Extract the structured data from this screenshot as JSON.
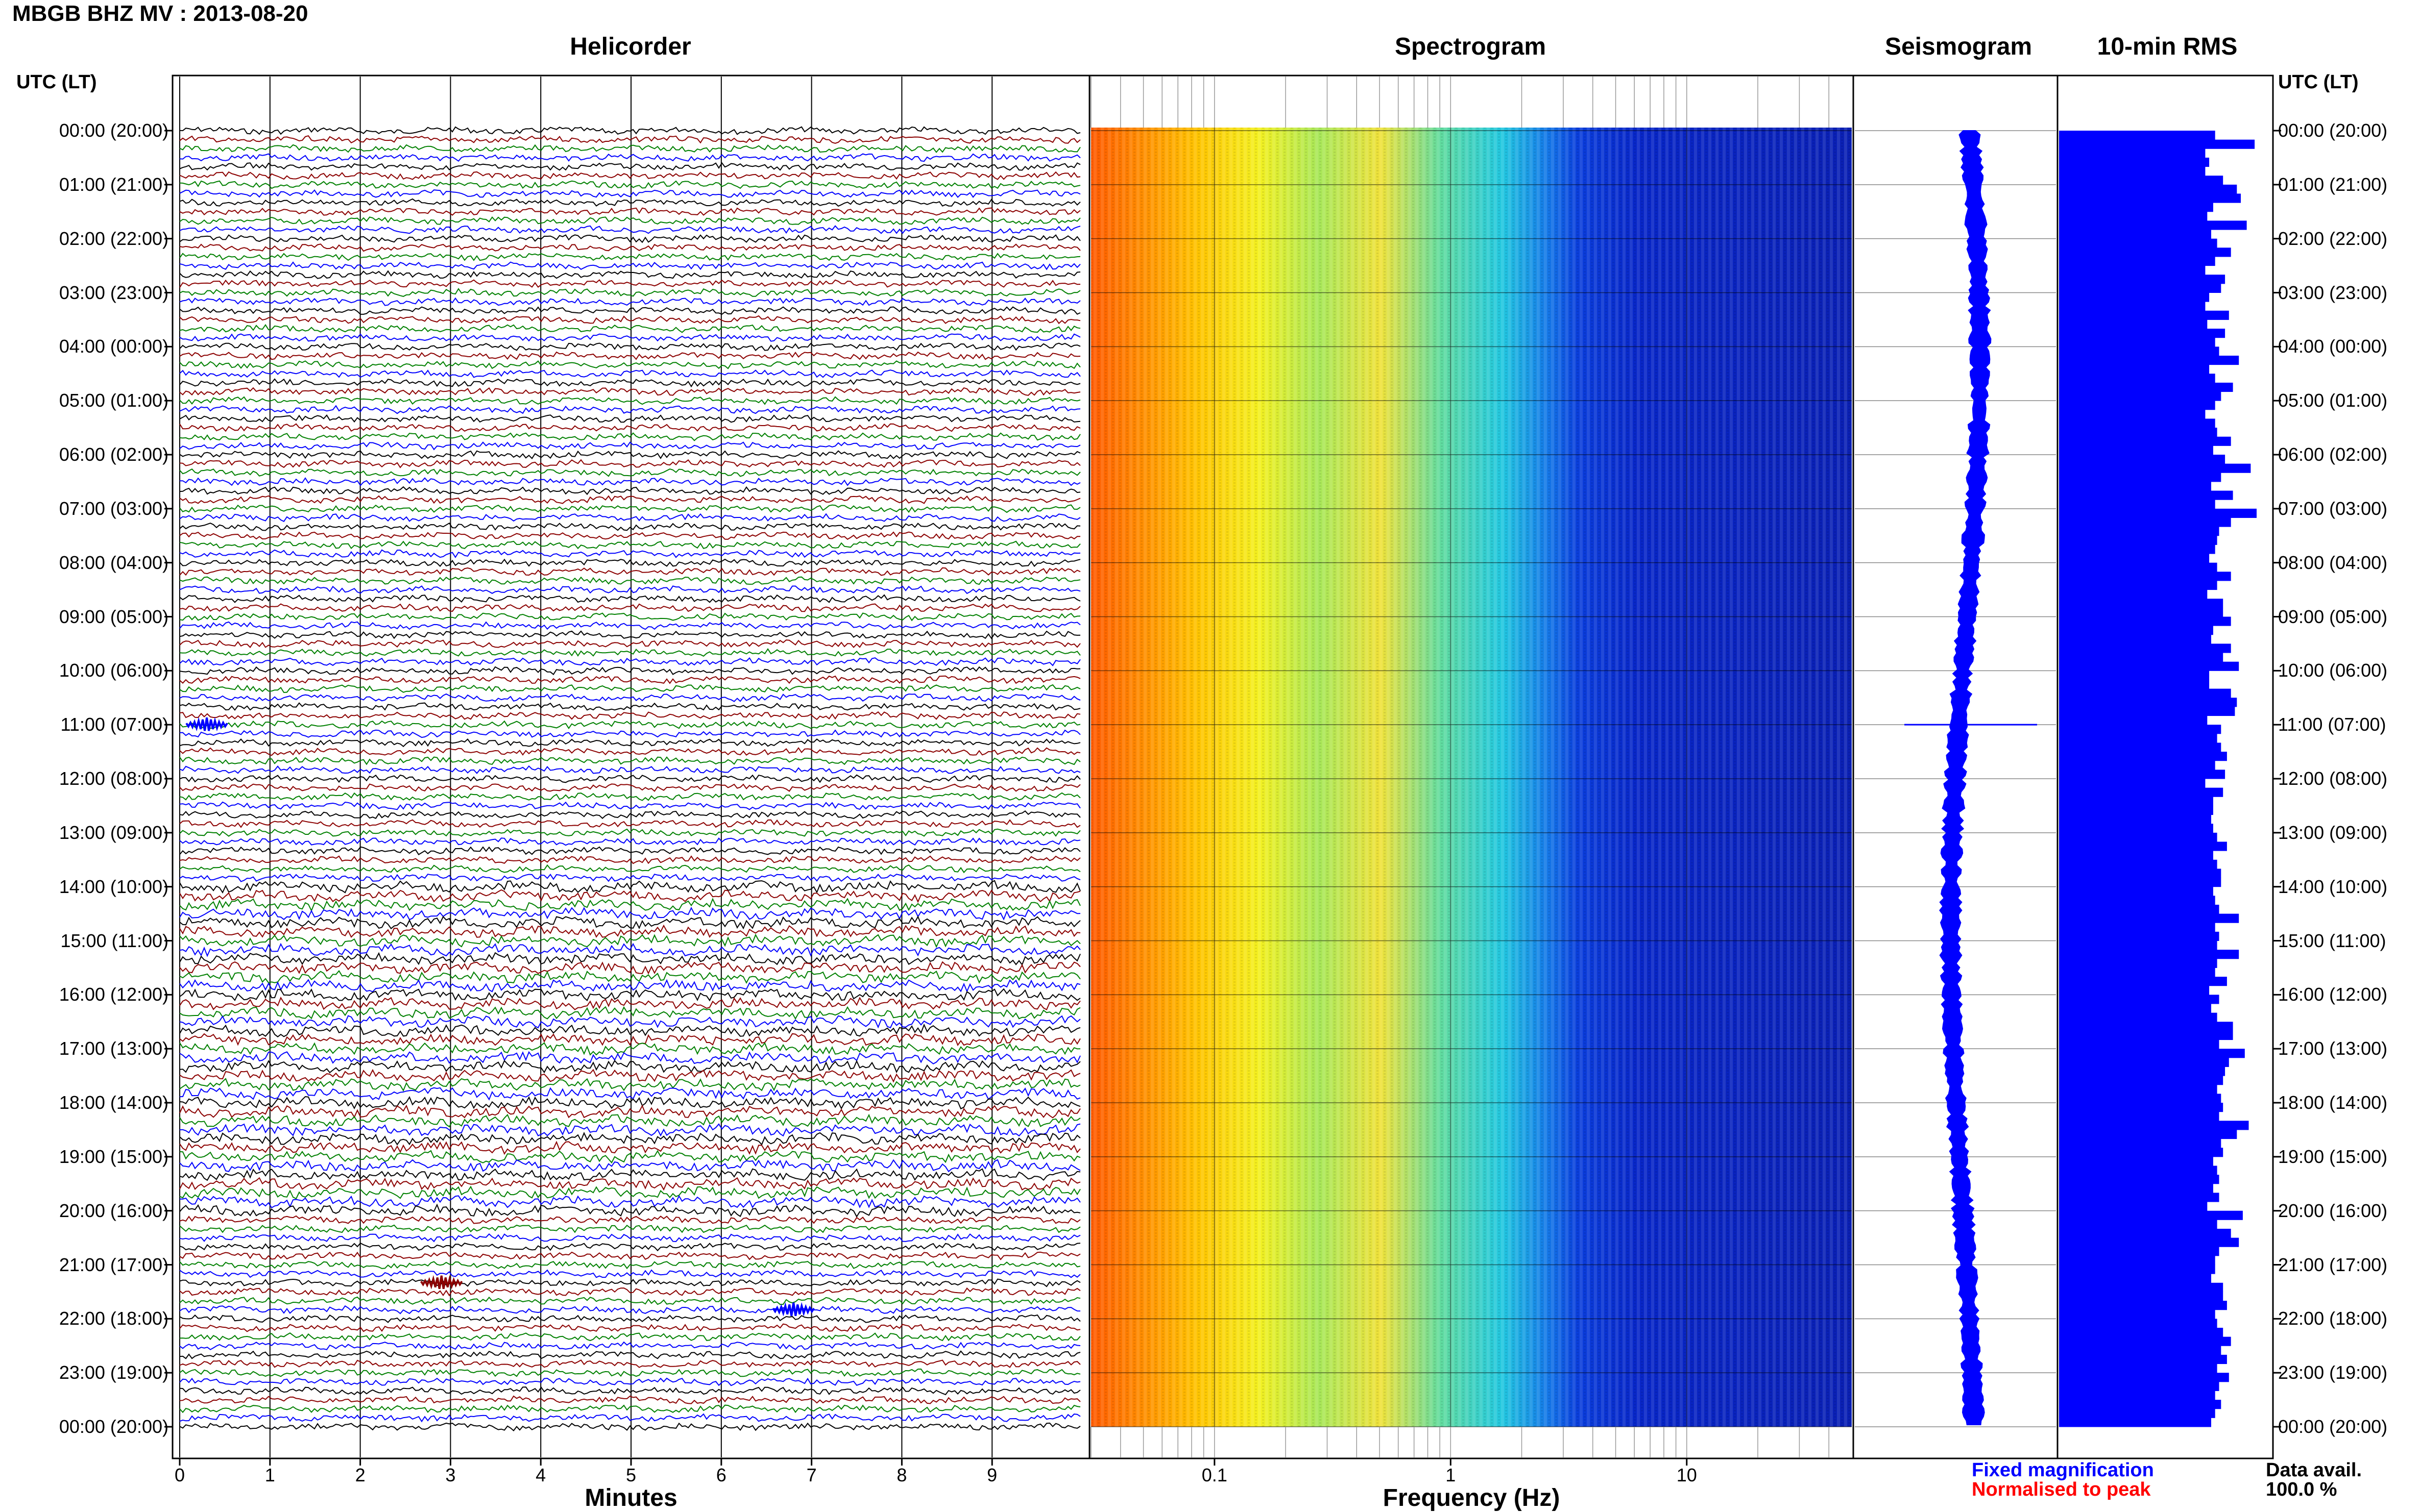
{
  "title": "MBGB BHZ MV : 2013-08-20",
  "panels": {
    "helicorder": "Helicorder",
    "spectrogram": "Spectrogram",
    "seismogram": "Seismogram",
    "rms": "10-min RMS"
  },
  "axis_heads": {
    "left": "UTC (LT)",
    "right": "UTC (LT)"
  },
  "time_labels": [
    "00:00 (20:00)",
    "01:00 (21:00)",
    "02:00 (22:00)",
    "03:00 (23:00)",
    "04:00 (00:00)",
    "05:00 (01:00)",
    "06:00 (02:00)",
    "07:00 (03:00)",
    "08:00 (04:00)",
    "09:00 (05:00)",
    "10:00 (06:00)",
    "11:00 (07:00)",
    "12:00 (08:00)",
    "13:00 (09:00)",
    "14:00 (10:00)",
    "15:00 (11:00)",
    "16:00 (12:00)",
    "17:00 (13:00)",
    "18:00 (14:00)",
    "19:00 (15:00)",
    "20:00 (16:00)",
    "21:00 (17:00)",
    "22:00 (18:00)",
    "23:00 (19:00)",
    "00:00 (20:00)"
  ],
  "helicorder_axis": {
    "ticks": [
      "0",
      "1",
      "2",
      "3",
      "4",
      "5",
      "6",
      "7",
      "8",
      "9"
    ],
    "title": "Minutes"
  },
  "spectrogram_axis": {
    "ticks": [
      "0.1",
      "1",
      "10"
    ],
    "title": "Frequency (Hz)",
    "scale": "log"
  },
  "legend": {
    "fixed": "Fixed magnification",
    "normalised": "Normalised to peak",
    "fixed_color": "#0000ff",
    "normalised_color": "#ff0000"
  },
  "data_avail": {
    "label": "Data avail.",
    "value": "100.0 %"
  },
  "colors": {
    "trace_cycle": [
      "#000000",
      "#8b0000",
      "#008000",
      "#0000ff"
    ],
    "rms_bar": "#0000ff",
    "seismogram": "#0000ff"
  },
  "chart_data": [
    {
      "type": "line",
      "title": "Helicorder",
      "xlabel": "Minutes",
      "xlim": [
        0,
        10
      ],
      "rows_per_hour": 6,
      "hours": 24,
      "events": [
        {
          "time_utc": "11:00",
          "minute": 0.3,
          "color": "#0000ff"
        },
        {
          "time_utc": "21:20",
          "minute": 2.9,
          "color": "#8b0000"
        },
        {
          "time_utc": "21:50",
          "minute": 6.8,
          "color": "#0000ff"
        }
      ]
    },
    {
      "type": "heatmap",
      "title": "Spectrogram",
      "xlabel": "Frequency (Hz)",
      "xscale": "log",
      "xlim": [
        0.03,
        50
      ],
      "ylim_utc": [
        "00:00",
        "24:00"
      ]
    },
    {
      "type": "line",
      "title": "Seismogram",
      "ylim_utc": [
        "00:00",
        "24:00"
      ]
    },
    {
      "type": "bar",
      "title": "10-min RMS",
      "orientation": "horizontal",
      "values": [
        0.79,
        0.99,
        0.74,
        0.76,
        0.74,
        0.83,
        0.9,
        0.92,
        0.78,
        0.75,
        0.95,
        0.77,
        0.8,
        0.87,
        0.79,
        0.74,
        0.84,
        0.82,
        0.76,
        0.74,
        0.86,
        0.75,
        0.84,
        0.79,
        0.81,
        0.91,
        0.76,
        0.79,
        0.88,
        0.82,
        0.79,
        0.74,
        0.79,
        0.8,
        0.87,
        0.78,
        0.84,
        0.97,
        0.82,
        0.77,
        0.88,
        0.79,
        1.0,
        0.87,
        0.81,
        0.8,
        0.79,
        0.76,
        0.8,
        0.87,
        0.8,
        0.75,
        0.83,
        0.83,
        0.87,
        0.78,
        0.77,
        0.87,
        0.83,
        0.91,
        0.76,
        0.76,
        0.87,
        0.9,
        0.89,
        0.75,
        0.82,
        0.8,
        0.82,
        0.85,
        0.79,
        0.84,
        0.74,
        0.83,
        0.78,
        0.78,
        0.77,
        0.78,
        0.8,
        0.85,
        0.78,
        0.8,
        0.82,
        0.82,
        0.78,
        0.79,
        0.81,
        0.91,
        0.79,
        0.81,
        0.8,
        0.91,
        0.8,
        0.79,
        0.85,
        0.76,
        0.81,
        0.77,
        0.8,
        0.88,
        0.88,
        0.81,
        0.94,
        0.86,
        0.84,
        0.83,
        0.8,
        0.82,
        0.83,
        0.81,
        0.96,
        0.9,
        0.82,
        0.83,
        0.78,
        0.8,
        0.81,
        0.78,
        0.81,
        0.75,
        0.93,
        0.8,
        0.87,
        0.91,
        0.81,
        0.79,
        0.79,
        0.77,
        0.83,
        0.83,
        0.85,
        0.79,
        0.8,
        0.83,
        0.87,
        0.82,
        0.85,
        0.8,
        0.86,
        0.81,
        0.79,
        0.82,
        0.79,
        0.77
      ]
    }
  ]
}
